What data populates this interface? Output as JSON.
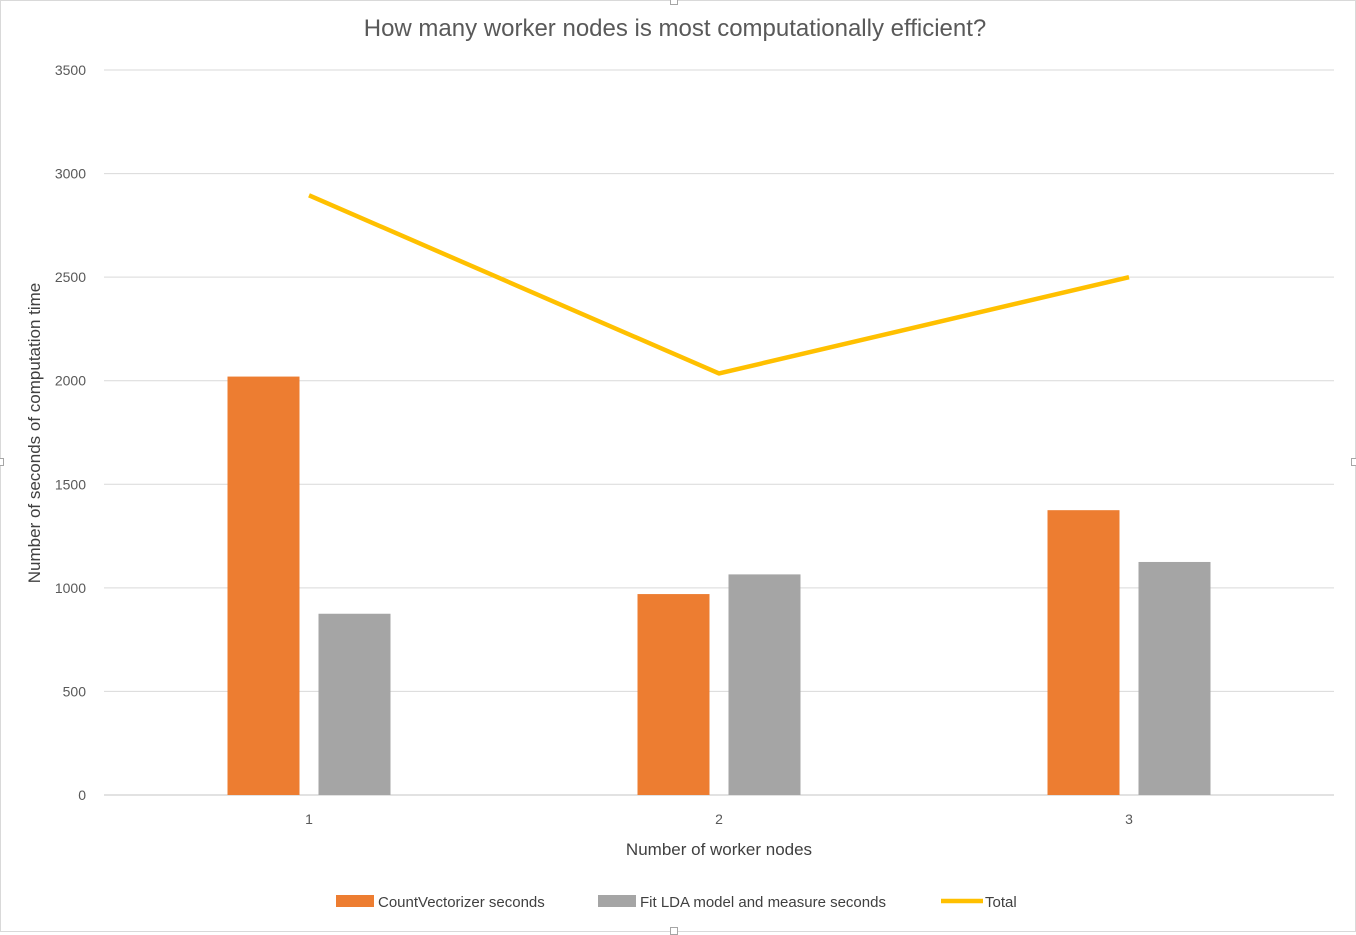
{
  "chart_data": {
    "type": "bar",
    "title": "How many worker nodes is most computationally efficient?",
    "xlabel": "Number of worker nodes",
    "ylabel": "Number of seconds of computation time",
    "categories": [
      "1",
      "2",
      "3"
    ],
    "ylim": [
      0,
      3500
    ],
    "yticks": [
      0,
      500,
      1000,
      1500,
      2000,
      2500,
      3000,
      3500
    ],
    "grid": true,
    "legend_position": "bottom",
    "series": [
      {
        "name": "CountVectorizer seconds",
        "type": "bar",
        "color": "#ED7D31",
        "values": [
          2020,
          970,
          1375
        ]
      },
      {
        "name": "Fit LDA model and measure seconds",
        "type": "bar",
        "color": "#A5A5A5",
        "values": [
          875,
          1065,
          1125
        ]
      },
      {
        "name": "Total",
        "type": "line",
        "color": "#FFC000",
        "values": [
          2895,
          2035,
          2500
        ]
      }
    ]
  }
}
